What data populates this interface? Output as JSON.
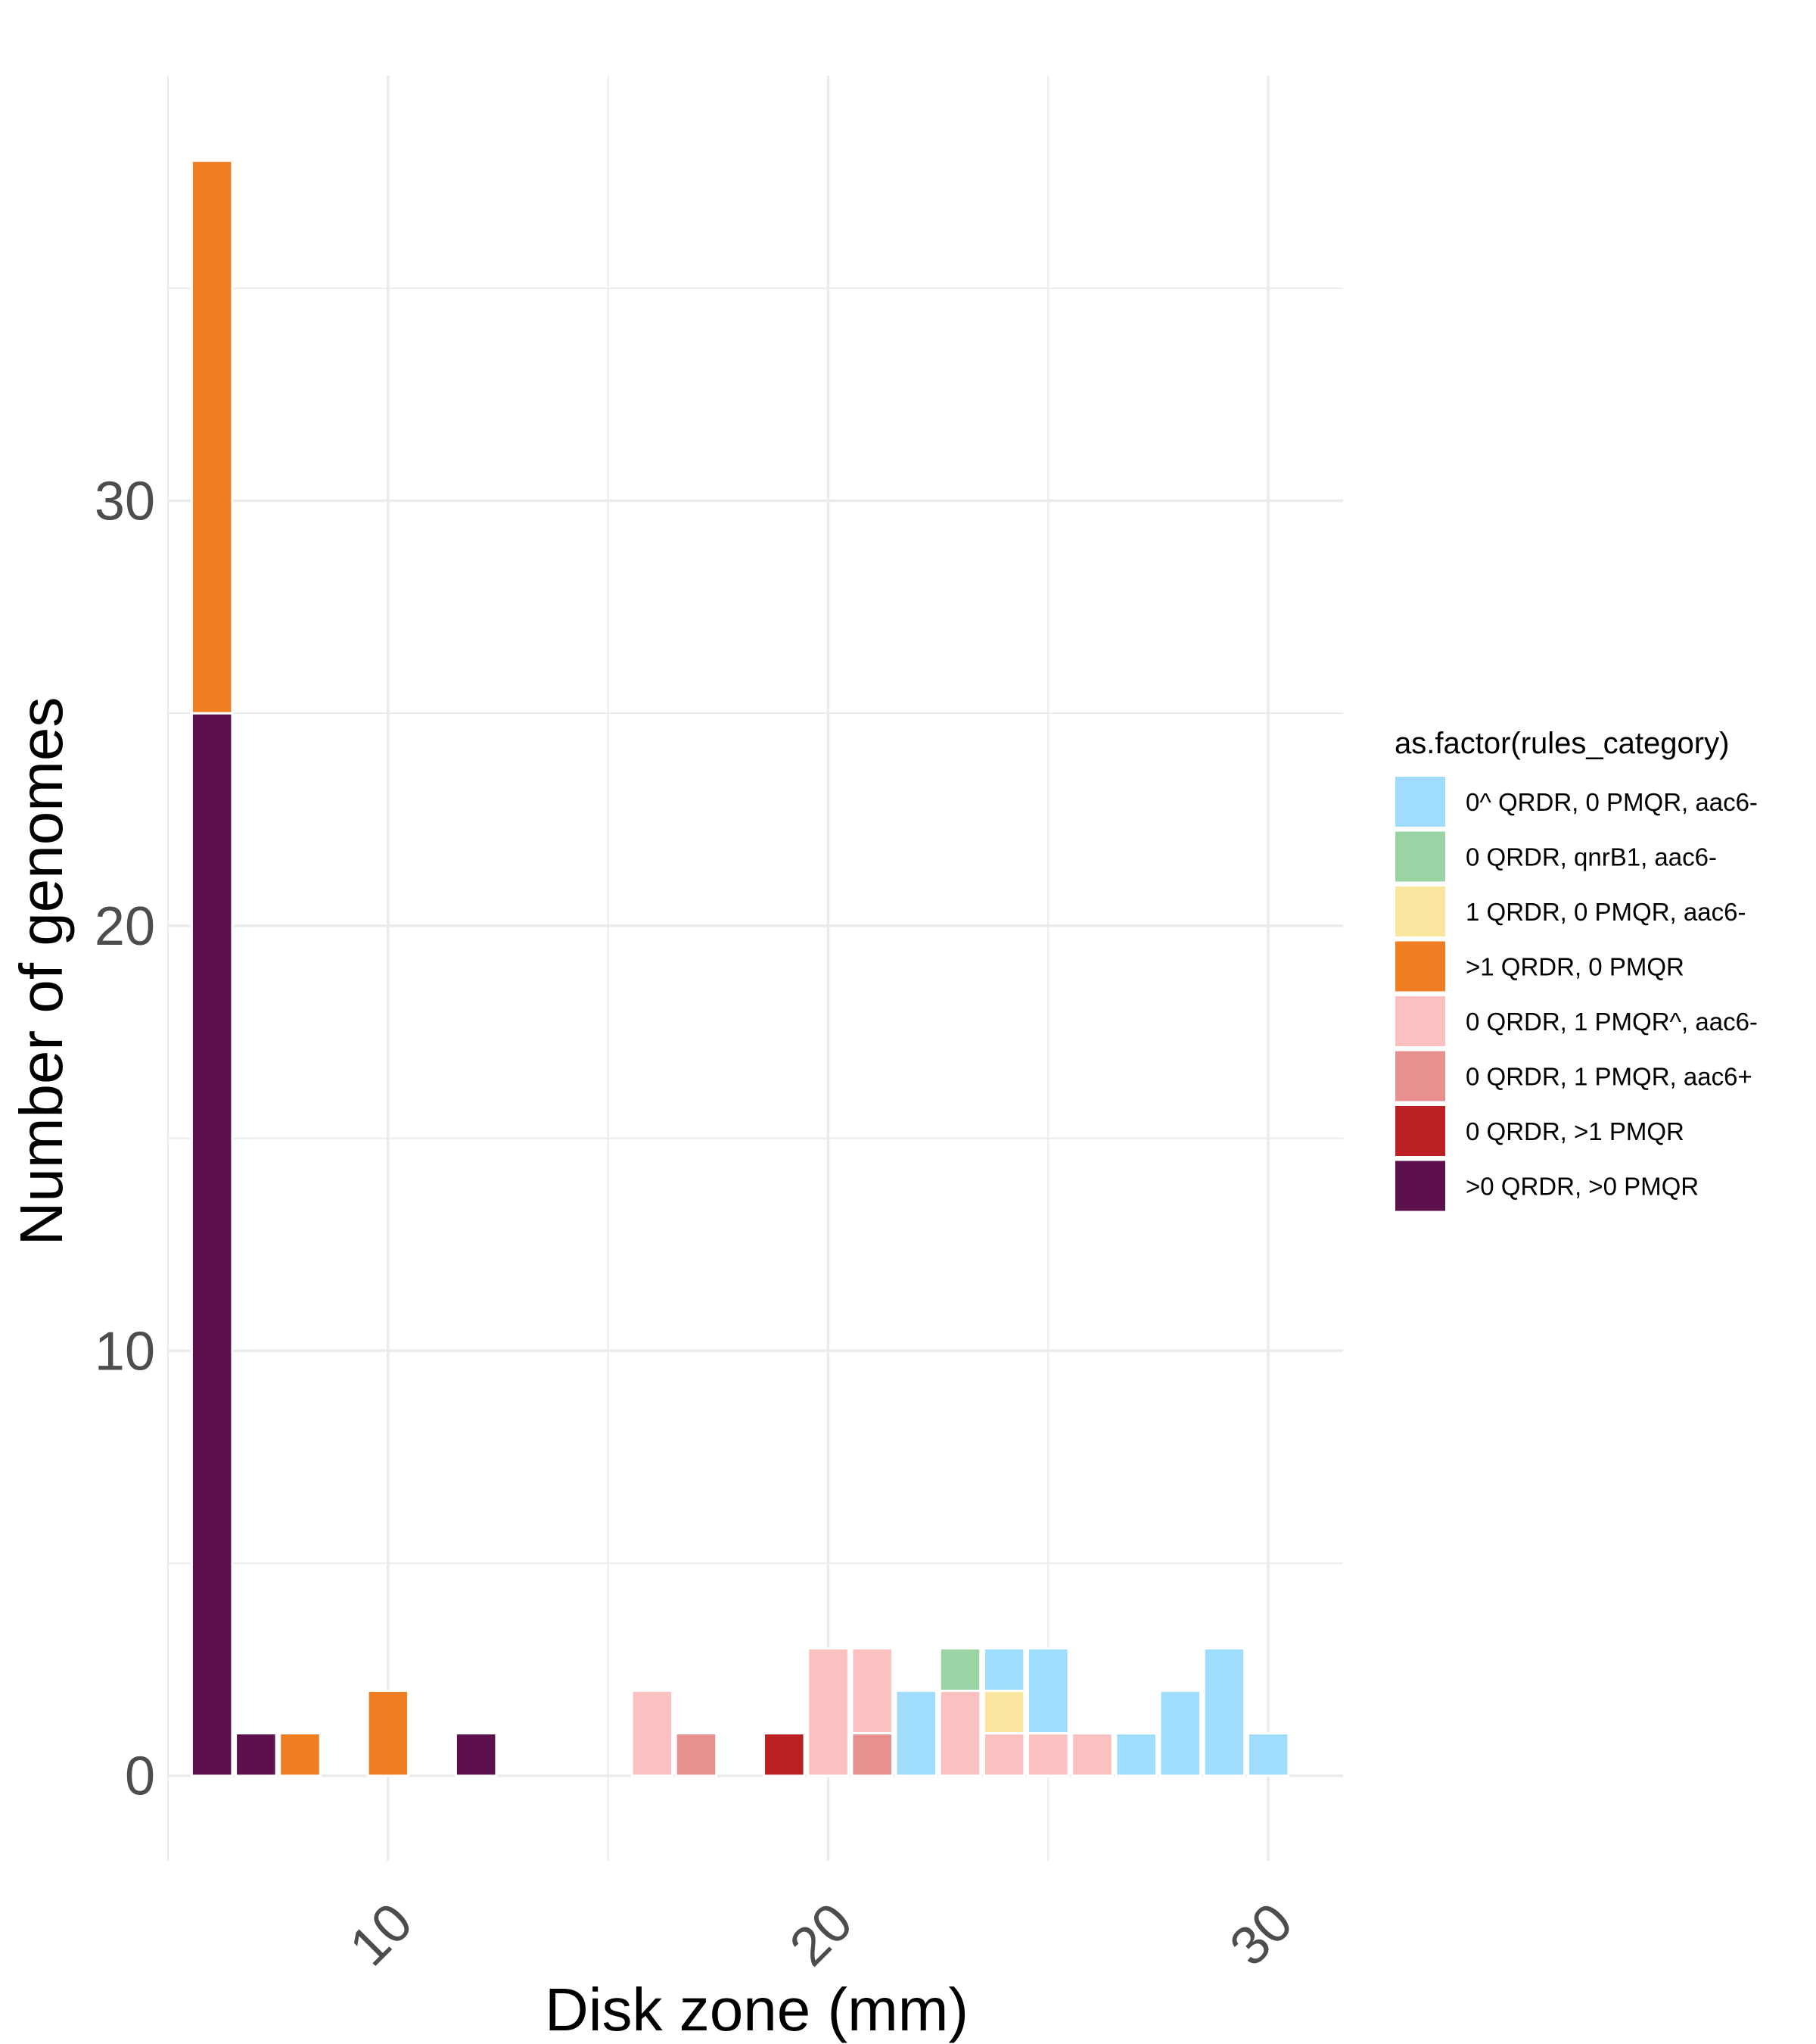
{
  "chart_data": {
    "type": "bar",
    "stacked": true,
    "xlabel": "Disk zone (mm)",
    "ylabel": "Number of genomes",
    "xlim": [
      5,
      31.7
    ],
    "ylim": [
      -2.0,
      40.0
    ],
    "x_ticks": [
      10,
      20,
      30
    ],
    "y_ticks": [
      0,
      10,
      20,
      30
    ],
    "grid": true,
    "legend": {
      "title": "as.factor(rules_category)",
      "position": "right"
    },
    "series": [
      {
        "name": "0^ QRDR, 0 PMQR, aac6-",
        "color": "#a0dcfc",
        "points": [
          [
            22,
            2
          ],
          [
            24,
            1
          ],
          [
            25,
            2
          ],
          [
            27,
            1
          ],
          [
            28,
            2
          ],
          [
            29,
            3
          ],
          [
            30,
            1
          ]
        ]
      },
      {
        "name": "0 QRDR, qnrB1, aac6-",
        "color": "#9ad3a4",
        "points": [
          [
            23,
            1
          ]
        ]
      },
      {
        "name": "1 QRDR, 0 PMQR, aac6-",
        "color": "#fae5a0",
        "points": [
          [
            24,
            1
          ]
        ]
      },
      {
        "name": ">1 QRDR, 0 PMQR",
        "color": "#ef7e22",
        "points": [
          [
            6,
            13
          ],
          [
            8,
            1
          ],
          [
            10,
            2
          ]
        ]
      },
      {
        "name": "0 QRDR, 1 PMQR^, aac6-",
        "color": "#fbc0c0",
        "points": [
          [
            16,
            2
          ],
          [
            20,
            3
          ],
          [
            21,
            2
          ],
          [
            23,
            2
          ],
          [
            24,
            1
          ],
          [
            25,
            1
          ],
          [
            26,
            1
          ]
        ]
      },
      {
        "name": "0 QRDR, 1 PMQR, aac6+",
        "color": "#e79090",
        "points": [
          [
            17,
            1
          ],
          [
            21,
            1
          ]
        ]
      },
      {
        "name": "0 QRDR, >1 PMQR",
        "color": "#bb2022",
        "points": [
          [
            19,
            1
          ]
        ]
      },
      {
        "name": ">0 QRDR, >0 PMQR",
        "color": "#5d114c",
        "points": [
          [
            6,
            25
          ],
          [
            7,
            1
          ],
          [
            12,
            1
          ]
        ]
      }
    ]
  }
}
